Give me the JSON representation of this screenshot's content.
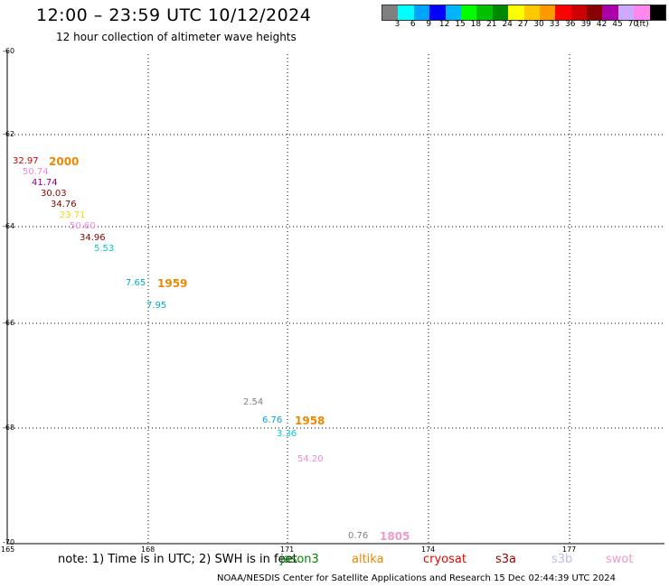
{
  "title": "12:00 – 23:59 UTC 10/12/2024",
  "subtitle": "12 hour collection of altimeter wave heights",
  "scale": {
    "colors": [
      "#808080",
      "#00ffff",
      "#00a5ff",
      "#0000ff",
      "#00b4ff",
      "#00ff00",
      "#00c000",
      "#008800",
      "#ffff00",
      "#ffc800",
      "#ff9900",
      "#ff0000",
      "#cc0000",
      "#880000",
      "#aa00aa",
      "#ccaaff",
      "#ff88ee",
      "#000000"
    ],
    "labels": [
      "3",
      "6",
      "9",
      "12",
      "15",
      "18",
      "21",
      "24",
      "27",
      "30",
      "33",
      "36",
      "39",
      "42",
      "45",
      "70",
      "(ft)"
    ]
  },
  "map": {
    "lat_labels": [
      "-60",
      "-62",
      "-64",
      "-66",
      "-68",
      "-70"
    ],
    "lon_labels": [
      "165",
      "168",
      "171",
      "174",
      "177"
    ]
  },
  "observations": [
    {
      "text": "32.97",
      "color": "#cc0000"
    },
    {
      "text": "50.74",
      "color": "#ee88dd"
    },
    {
      "text": "41.74",
      "color": "#880088"
    },
    {
      "text": "30.03",
      "color": "#990000"
    },
    {
      "text": "34.76",
      "color": "#880000"
    },
    {
      "text": "23.71",
      "color": "#eedd00"
    },
    {
      "text": "50.60",
      "color": "#ee88dd"
    },
    {
      "text": "34.96",
      "color": "#880000"
    },
    {
      "text": "5.53",
      "color": "#00cccc"
    },
    {
      "text": "7.65",
      "color": "#00aacc"
    },
    {
      "text": "7.95",
      "color": "#00aacc"
    },
    {
      "text": "2.54",
      "color": "#808080"
    },
    {
      "text": "6.76",
      "color": "#00aacc"
    },
    {
      "text": "3.36",
      "color": "#00cccc"
    },
    {
      "text": "54.20",
      "color": "#ee88dd"
    },
    {
      "text": "0.76",
      "color": "#808080"
    }
  ],
  "time_labels": [
    {
      "text": "2000",
      "color": "#ee8800"
    },
    {
      "text": "1959",
      "color": "#ee8800"
    },
    {
      "text": "1958",
      "color": "#ee8800"
    },
    {
      "text": "1805",
      "color": "#ee99cc"
    }
  ],
  "note": "note:  1) Time is in UTC;  2) SWH is in feet",
  "satellites": [
    {
      "name": "jason3",
      "color": "#008800"
    },
    {
      "name": "altika",
      "color": "#ee8800"
    },
    {
      "name": "cryosat",
      "color": "#ee0000"
    },
    {
      "name": "s3a",
      "color": "#990000"
    },
    {
      "name": "s3b",
      "color": "#bbbbee"
    },
    {
      "name": "swot",
      "color": "#ee99cc"
    }
  ],
  "footer": "NOAA/NESDIS Center for Satellite Applications and Research    15 Dec 02:44:39 UTC 2024"
}
